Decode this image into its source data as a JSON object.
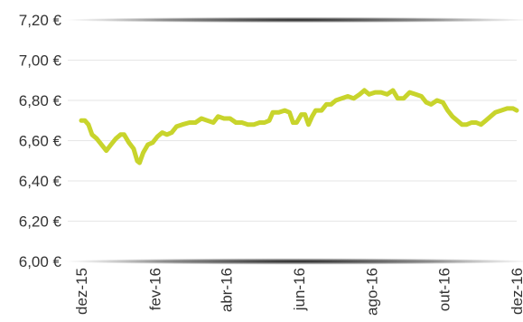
{
  "chart_data": {
    "type": "line",
    "title": "",
    "xlabel": "",
    "ylabel": "",
    "ylim": [
      6.0,
      7.2
    ],
    "y_ticks": [
      "6,00 €",
      "6,20 €",
      "6,40 €",
      "6,60 €",
      "6,80 €",
      "7,00 €",
      "7,20 €"
    ],
    "y_tick_values": [
      6.0,
      6.2,
      6.4,
      6.6,
      6.8,
      7.0,
      7.2
    ],
    "x_ticks": [
      "dez-15",
      "fev-16",
      "abr-16",
      "jun-16",
      "ago-16",
      "out-16",
      "dez-16"
    ],
    "x_tick_dates": [
      "2015-12-01",
      "2016-02-01",
      "2016-04-01",
      "2016-06-01",
      "2016-08-01",
      "2016-10-01",
      "2016-12-01"
    ],
    "xlim": [
      "2015-12-01",
      "2016-12-01"
    ],
    "grid": true,
    "colors": {
      "line": "#c8d42c",
      "grid": "#e6e6e6",
      "axis_shadow": "#222222"
    },
    "series": [
      {
        "values": [
          [
            "2015-12-01",
            6.7
          ],
          [
            "2015-12-04",
            6.7
          ],
          [
            "2015-12-07",
            6.68
          ],
          [
            "2015-12-10",
            6.63
          ],
          [
            "2015-12-14",
            6.61
          ],
          [
            "2015-12-18",
            6.58
          ],
          [
            "2015-12-22",
            6.55
          ],
          [
            "2015-12-26",
            6.58
          ],
          [
            "2015-12-30",
            6.61
          ],
          [
            "2016-01-03",
            6.63
          ],
          [
            "2016-01-06",
            6.63
          ],
          [
            "2016-01-10",
            6.59
          ],
          [
            "2016-01-14",
            6.56
          ],
          [
            "2016-01-17",
            6.5
          ],
          [
            "2016-01-19",
            6.49
          ],
          [
            "2016-01-22",
            6.54
          ],
          [
            "2016-01-26",
            6.58
          ],
          [
            "2016-01-30",
            6.59
          ],
          [
            "2016-02-03",
            6.62
          ],
          [
            "2016-02-07",
            6.64
          ],
          [
            "2016-02-11",
            6.63
          ],
          [
            "2016-02-15",
            6.64
          ],
          [
            "2016-02-19",
            6.67
          ],
          [
            "2016-02-24",
            6.68
          ],
          [
            "2016-03-01",
            6.69
          ],
          [
            "2016-03-06",
            6.69
          ],
          [
            "2016-03-11",
            6.71
          ],
          [
            "2016-03-16",
            6.7
          ],
          [
            "2016-03-21",
            6.69
          ],
          [
            "2016-03-25",
            6.72
          ],
          [
            "2016-03-30",
            6.71
          ],
          [
            "2016-04-04",
            6.71
          ],
          [
            "2016-04-09",
            6.69
          ],
          [
            "2016-04-14",
            6.69
          ],
          [
            "2016-04-19",
            6.68
          ],
          [
            "2016-04-24",
            6.68
          ],
          [
            "2016-04-29",
            6.69
          ],
          [
            "2016-05-03",
            6.69
          ],
          [
            "2016-05-07",
            6.7
          ],
          [
            "2016-05-10",
            6.74
          ],
          [
            "2016-05-15",
            6.74
          ],
          [
            "2016-05-20",
            6.75
          ],
          [
            "2016-05-24",
            6.74
          ],
          [
            "2016-05-27",
            6.69
          ],
          [
            "2016-05-30",
            6.69
          ],
          [
            "2016-06-03",
            6.73
          ],
          [
            "2016-06-06",
            6.73
          ],
          [
            "2016-06-09",
            6.68
          ],
          [
            "2016-06-12",
            6.72
          ],
          [
            "2016-06-15",
            6.75
          ],
          [
            "2016-06-20",
            6.75
          ],
          [
            "2016-06-24",
            6.78
          ],
          [
            "2016-06-28",
            6.78
          ],
          [
            "2016-07-02",
            6.8
          ],
          [
            "2016-07-07",
            6.81
          ],
          [
            "2016-07-12",
            6.82
          ],
          [
            "2016-07-17",
            6.81
          ],
          [
            "2016-07-22",
            6.83
          ],
          [
            "2016-07-26",
            6.85
          ],
          [
            "2016-07-30",
            6.83
          ],
          [
            "2016-08-04",
            6.84
          ],
          [
            "2016-08-09",
            6.84
          ],
          [
            "2016-08-14",
            6.83
          ],
          [
            "2016-08-19",
            6.85
          ],
          [
            "2016-08-23",
            6.81
          ],
          [
            "2016-08-28",
            6.81
          ],
          [
            "2016-09-02",
            6.84
          ],
          [
            "2016-09-07",
            6.83
          ],
          [
            "2016-09-12",
            6.82
          ],
          [
            "2016-09-16",
            6.79
          ],
          [
            "2016-09-20",
            6.78
          ],
          [
            "2016-09-25",
            6.8
          ],
          [
            "2016-09-30",
            6.79
          ],
          [
            "2016-10-04",
            6.75
          ],
          [
            "2016-10-08",
            6.72
          ],
          [
            "2016-10-12",
            6.7
          ],
          [
            "2016-10-16",
            6.68
          ],
          [
            "2016-10-20",
            6.68
          ],
          [
            "2016-10-24",
            6.69
          ],
          [
            "2016-10-28",
            6.69
          ],
          [
            "2016-11-01",
            6.68
          ],
          [
            "2016-11-05",
            6.7
          ],
          [
            "2016-11-09",
            6.72
          ],
          [
            "2016-11-13",
            6.74
          ],
          [
            "2016-11-18",
            6.75
          ],
          [
            "2016-11-23",
            6.76
          ],
          [
            "2016-11-28",
            6.76
          ],
          [
            "2016-12-01",
            6.75
          ]
        ]
      }
    ]
  }
}
